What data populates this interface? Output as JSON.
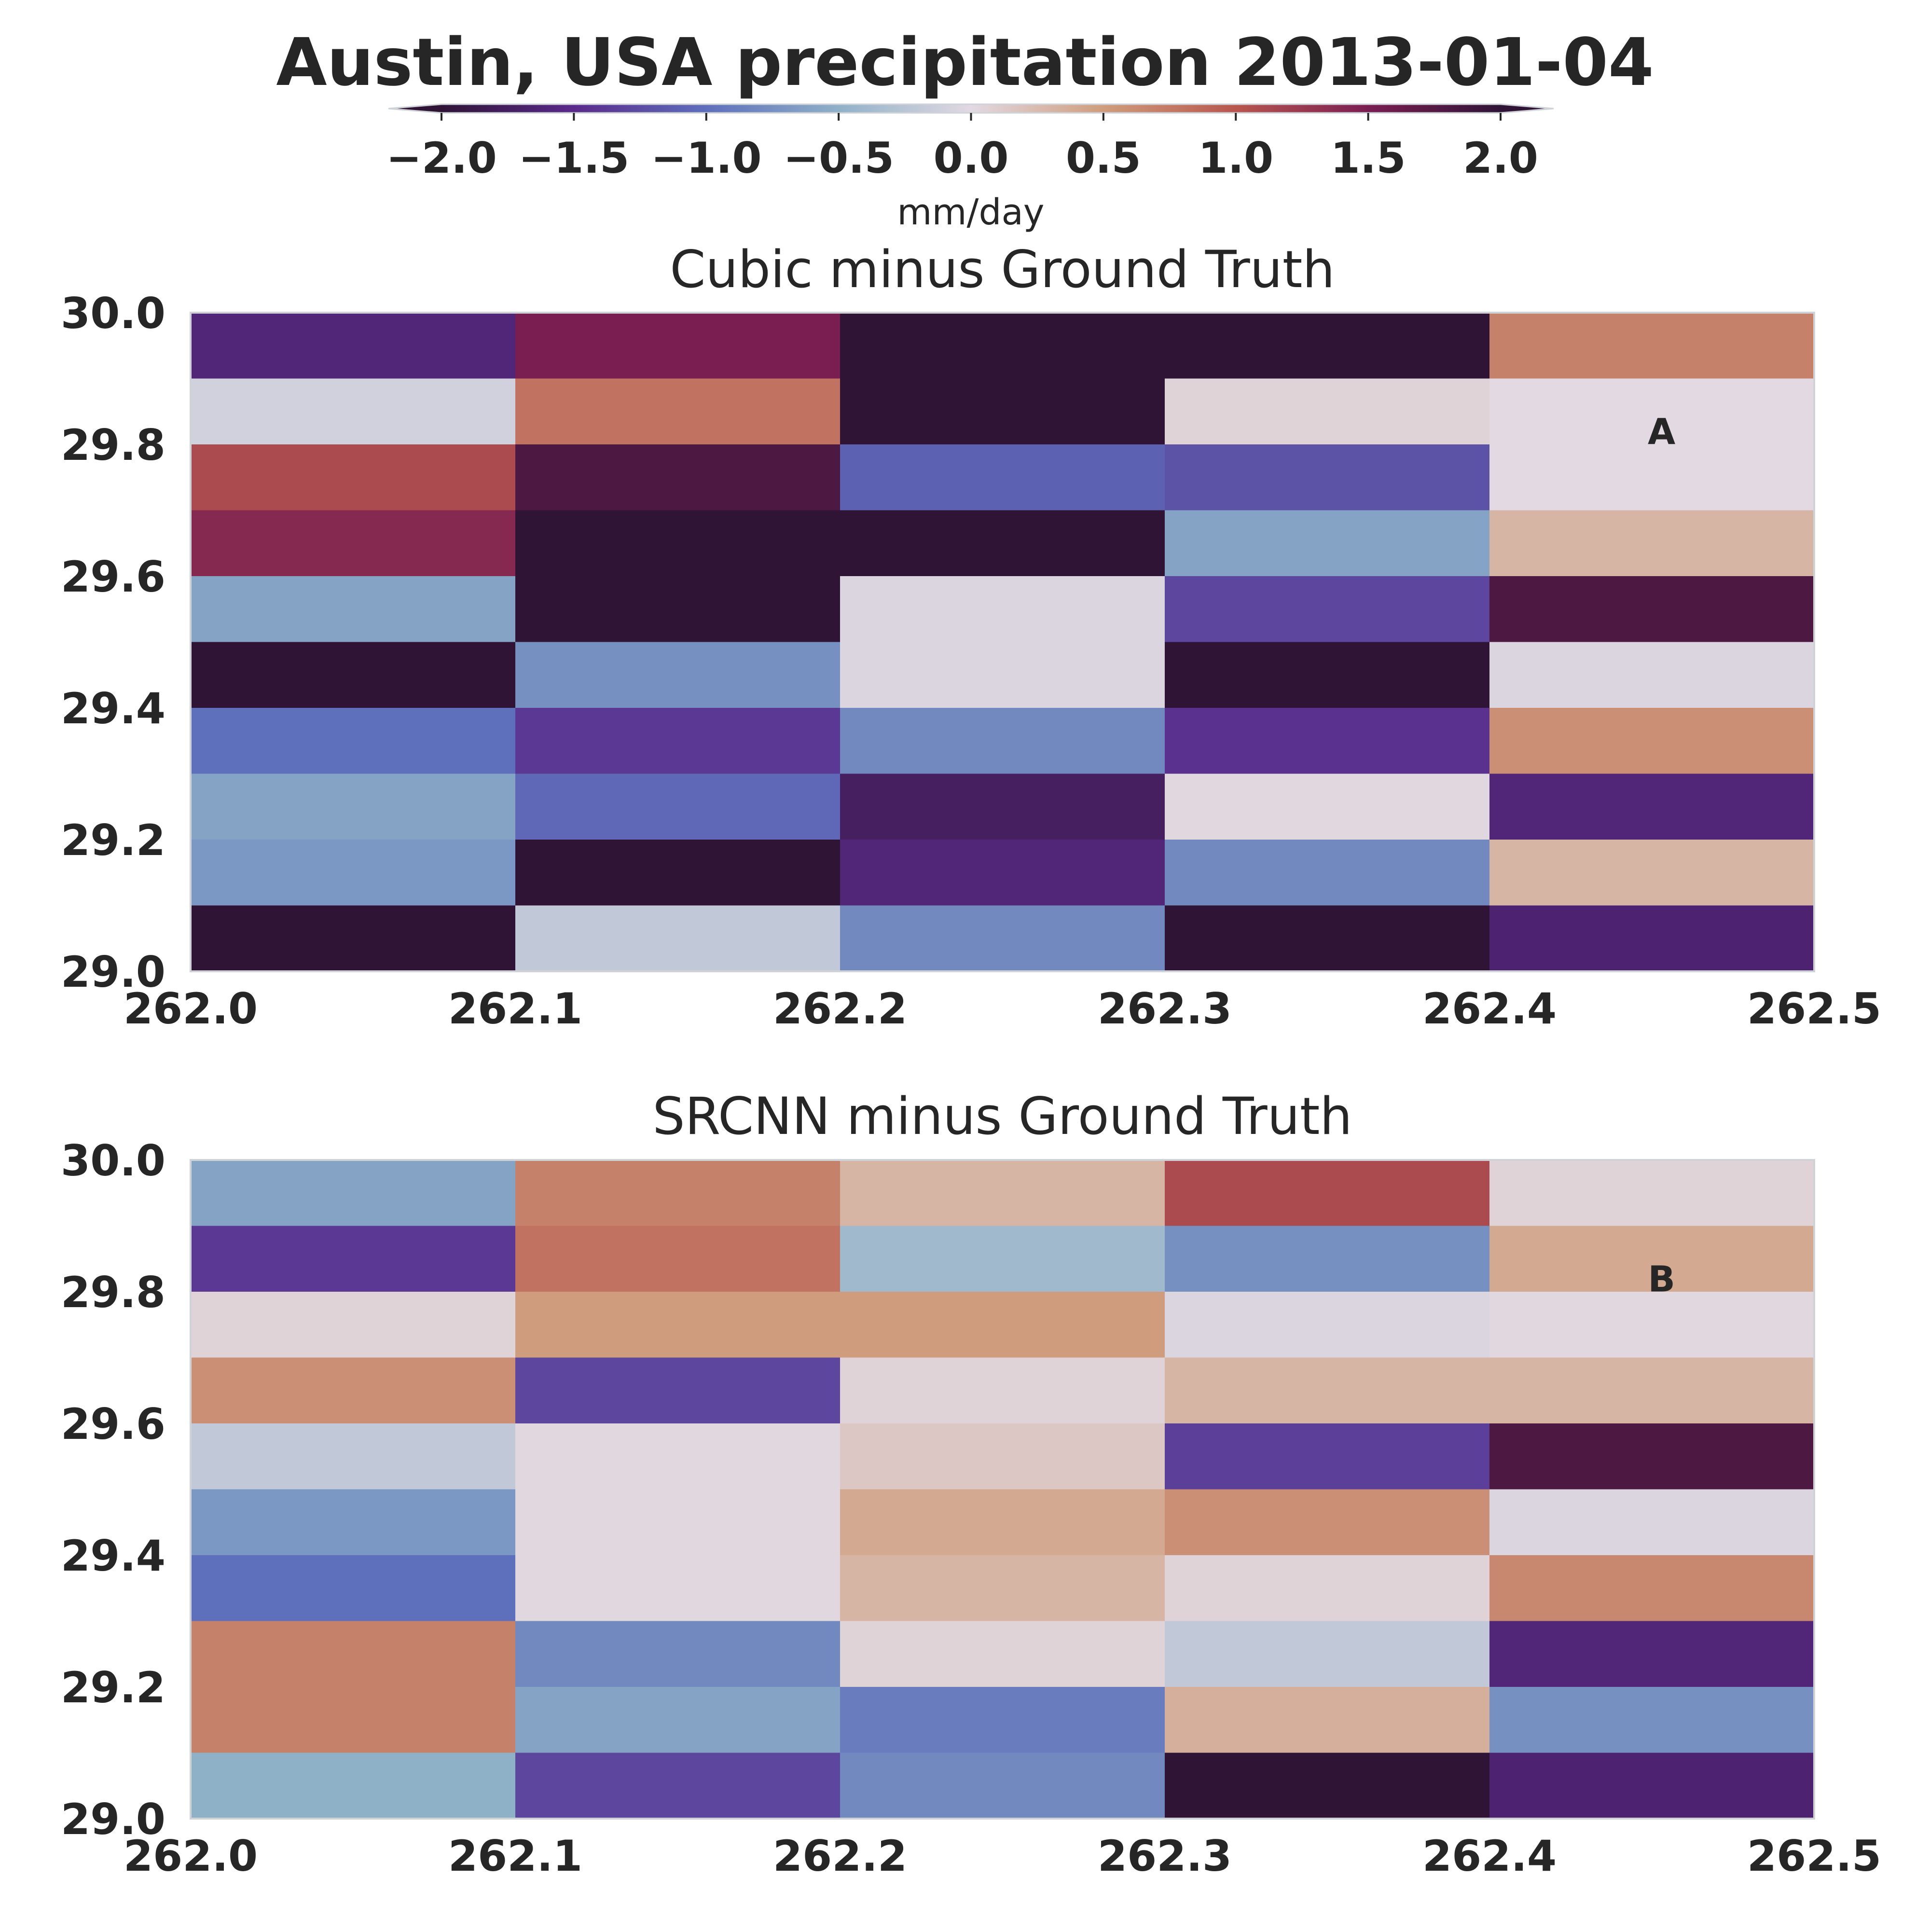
{
  "title": "Austin, USA precipitation 2013-01-04",
  "colorbar": {
    "label": "mm/day",
    "vmin": -2.0,
    "vmax": 2.0,
    "extend": "both",
    "ticks": [
      -2.0,
      -1.5,
      -1.0,
      -0.5,
      0.0,
      0.5,
      1.0,
      1.5,
      2.0
    ],
    "tick_labels": [
      "−2.0",
      "−1.5",
      "−1.0",
      "−0.5",
      "0.0",
      "0.5",
      "1.0",
      "1.5",
      "2.0"
    ],
    "colormap_stops": [
      "#2f1436",
      "#5a2a8a",
      "#5e6fbb",
      "#8fb1c8",
      "#e2d9e2",
      "#cf9d7d",
      "#b8564e",
      "#7a1e52",
      "#2f1436"
    ]
  },
  "chart_data": [
    {
      "type": "heatmap",
      "panel_label": "A",
      "title": "Cubic minus Ground Truth",
      "xlabel": "",
      "ylabel": "",
      "x_edges": [
        262.0,
        262.1,
        262.2,
        262.3,
        262.4,
        262.5
      ],
      "y_edges": [
        29.0,
        29.1,
        29.2,
        29.3,
        29.4,
        29.5,
        29.6,
        29.7,
        29.8,
        29.9,
        30.0
      ],
      "xlim": [
        262.0,
        262.5
      ],
      "ylim": [
        29.0,
        30.0
      ],
      "x_tick_labels": [
        "262.0",
        "262.1",
        "262.2",
        "262.3",
        "262.4",
        "262.5"
      ],
      "y_tick_labels": [
        "29.0",
        "29.2",
        "29.4",
        "29.6",
        "29.8",
        "30.0"
      ],
      "values_rows_top_to_bottom": [
        [
          -1.6,
          1.5,
          2.3,
          2.3,
          0.7
        ],
        [
          -0.1,
          0.8,
          2.3,
          0.05,
          0.0
        ],
        [
          1.1,
          1.8,
          -1.1,
          -1.2,
          0.0
        ],
        [
          1.4,
          2.3,
          2.3,
          -0.6,
          0.3
        ],
        [
          -0.6,
          2.3,
          -0.05,
          -1.3,
          1.8
        ],
        [
          2.3,
          -0.75,
          -0.05,
          2.3,
          -0.05
        ],
        [
          -1.0,
          -1.4,
          -0.8,
          -1.45,
          0.6
        ],
        [
          -0.6,
          -1.05,
          -1.75,
          0.02,
          -1.6
        ],
        [
          -0.7,
          -2.0,
          -1.6,
          -0.8,
          0.3
        ],
        [
          2.3,
          -0.2,
          -0.8,
          2.0,
          -1.65
        ]
      ]
    },
    {
      "type": "heatmap",
      "panel_label": "B",
      "title": "SRCNN minus Ground Truth",
      "xlabel": "",
      "ylabel": "",
      "x_edges": [
        262.0,
        262.1,
        262.2,
        262.3,
        262.4,
        262.5
      ],
      "y_edges": [
        29.0,
        29.1,
        29.2,
        29.3,
        29.4,
        29.5,
        29.6,
        29.7,
        29.8,
        29.9,
        30.0
      ],
      "xlim": [
        262.0,
        262.5
      ],
      "ylim": [
        29.0,
        30.0
      ],
      "x_tick_labels": [
        "262.0",
        "262.1",
        "262.2",
        "262.3",
        "262.4",
        "262.5"
      ],
      "y_tick_labels": [
        "29.0",
        "29.2",
        "29.4",
        "29.6",
        "29.8",
        "30.0"
      ],
      "values_rows_top_to_bottom": [
        [
          -0.6,
          0.7,
          0.3,
          1.1,
          0.05
        ],
        [
          -1.4,
          0.8,
          -0.4,
          -0.75,
          0.4
        ],
        [
          0.05,
          0.5,
          0.5,
          -0.05,
          0.02
        ],
        [
          0.6,
          -1.3,
          0.05,
          0.3,
          0.3
        ],
        [
          -0.2,
          0.02,
          0.15,
          -1.35,
          1.8
        ],
        [
          -0.7,
          0.02,
          0.4,
          0.6,
          -0.05
        ],
        [
          -1.0,
          0.02,
          0.3,
          0.05,
          0.65
        ],
        [
          0.7,
          -0.8,
          0.05,
          -0.2,
          -1.6
        ],
        [
          0.7,
          -0.6,
          -0.9,
          0.35,
          -0.75
        ],
        [
          -0.5,
          -1.3,
          -0.8,
          2.0,
          -1.65
        ]
      ]
    }
  ]
}
